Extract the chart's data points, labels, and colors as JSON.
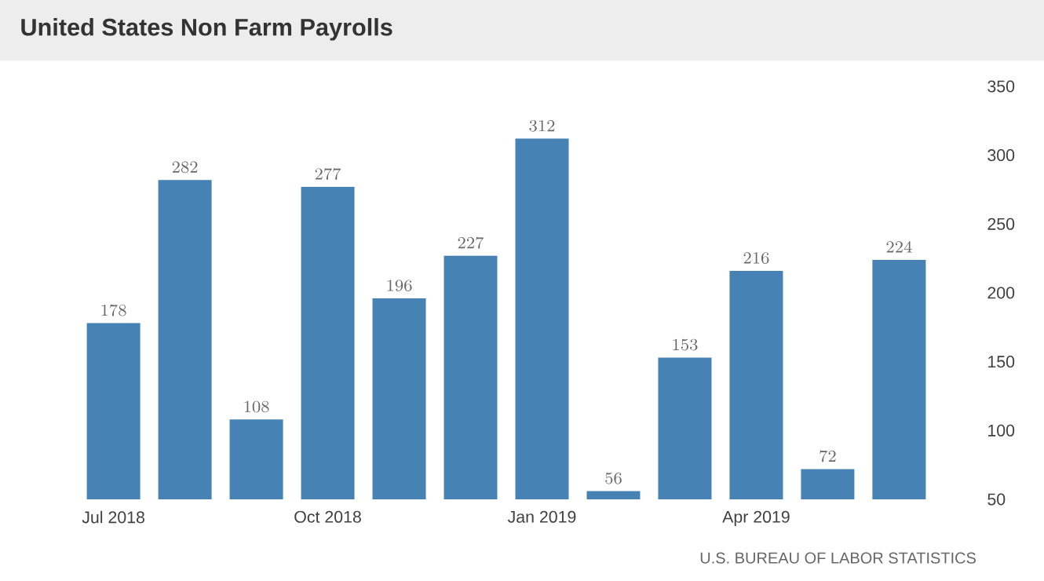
{
  "chart_data": {
    "type": "bar",
    "title": "United States Non Farm Payrolls",
    "categories": [
      "Jul 2018",
      null,
      null,
      "Oct 2018",
      null,
      null,
      "Jan 2019",
      null,
      null,
      "Apr 2019",
      null,
      null
    ],
    "values": [
      178,
      282,
      108,
      277,
      196,
      227,
      312,
      56,
      153,
      216,
      72,
      224
    ],
    "color": "#4682b4",
    "ylim": [
      50,
      350
    ],
    "yticks": [
      50,
      100,
      150,
      200,
      250,
      300,
      350
    ],
    "data_labels": true,
    "annotations": [
      "U.S. BUREAU OF LABOR STATISTICS"
    ]
  }
}
